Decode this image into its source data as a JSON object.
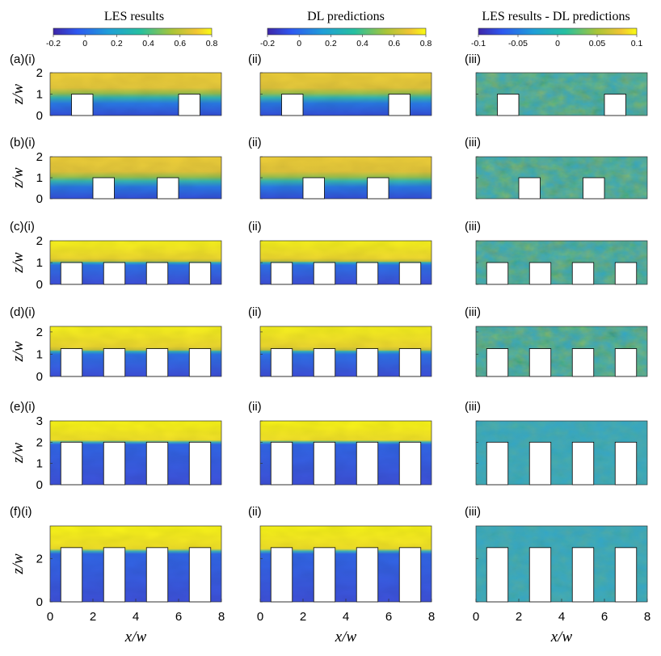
{
  "columns": [
    {
      "title": "LES results",
      "colorbar_ticks": [
        "-0.2",
        "0",
        "0.2",
        "0.4",
        "0.6",
        "0.8"
      ]
    },
    {
      "title": "DL predictions",
      "colorbar_ticks": [
        "-0.2",
        "0",
        "0.2",
        "0.4",
        "0.6",
        "0.8"
      ]
    },
    {
      "title": "LES results - DL predictions",
      "colorbar_ticks": [
        "-0.1",
        "-0.05",
        "0",
        "0.05",
        "0.1"
      ]
    }
  ],
  "rows": [
    {
      "labels": [
        "(a)(i)",
        "(ii)",
        "(iii)"
      ],
      "y_ticks": [
        "0",
        "1",
        "2"
      ]
    },
    {
      "labels": [
        "(b)(i)",
        "(ii)",
        "(iii)"
      ],
      "y_ticks": [
        "0",
        "1",
        "2"
      ]
    },
    {
      "labels": [
        "(c)(i)",
        "(ii)",
        "(iii)"
      ],
      "y_ticks": [
        "0",
        "1",
        "2"
      ]
    },
    {
      "labels": [
        "(d)(i)",
        "(ii)",
        "(iii)"
      ],
      "y_ticks": [
        "0",
        "1",
        "2"
      ]
    },
    {
      "labels": [
        "(e)(i)",
        "(ii)",
        "(iii)"
      ],
      "y_ticks": [
        "0",
        "1",
        "2",
        "3"
      ]
    },
    {
      "labels": [
        "(f)(i)",
        "(ii)",
        "(iii)"
      ],
      "y_ticks": [
        "0",
        "2"
      ]
    }
  ],
  "axes": {
    "ylabel": "z/w",
    "xlabel": "x/w",
    "x_ticks": [
      "0",
      "2",
      "4",
      "6",
      "8"
    ]
  },
  "chart_data": {
    "type": "heatmap",
    "title": "",
    "colormap": "parula",
    "xlabel": "x/w",
    "ylabel": "z/w",
    "xlim": [
      0,
      8
    ],
    "panels": [
      {
        "row": "a",
        "ylim": [
          0,
          2
        ],
        "buildings": [
          {
            "x0": 1,
            "x1": 2,
            "h": 1
          },
          {
            "x0": 6,
            "x1": 7,
            "h": 1
          }
        ]
      },
      {
        "row": "b",
        "ylim": [
          0,
          2
        ],
        "buildings": [
          {
            "x0": 2,
            "x1": 3,
            "h": 1
          },
          {
            "x0": 5,
            "x1": 6,
            "h": 1
          }
        ]
      },
      {
        "row": "c",
        "ylim": [
          0,
          2
        ],
        "buildings": [
          {
            "x0": 0.5,
            "x1": 1.5,
            "h": 1
          },
          {
            "x0": 2.5,
            "x1": 3.5,
            "h": 1
          },
          {
            "x0": 4.5,
            "x1": 5.5,
            "h": 1
          },
          {
            "x0": 6.5,
            "x1": 7.5,
            "h": 1
          }
        ]
      },
      {
        "row": "d",
        "ylim": [
          0,
          2.25
        ],
        "buildings": [
          {
            "x0": 0.5,
            "x1": 1.5,
            "h": 1.25
          },
          {
            "x0": 2.5,
            "x1": 3.5,
            "h": 1.25
          },
          {
            "x0": 4.5,
            "x1": 5.5,
            "h": 1.25
          },
          {
            "x0": 6.5,
            "x1": 7.5,
            "h": 1.25
          }
        ]
      },
      {
        "row": "e",
        "ylim": [
          0,
          3
        ],
        "buildings": [
          {
            "x0": 0.5,
            "x1": 1.5,
            "h": 2
          },
          {
            "x0": 2.5,
            "x1": 3.5,
            "h": 2
          },
          {
            "x0": 4.5,
            "x1": 5.5,
            "h": 2
          },
          {
            "x0": 6.5,
            "x1": 7.5,
            "h": 2
          }
        ]
      },
      {
        "row": "f",
        "ylim": [
          0,
          3.5
        ],
        "buildings": [
          {
            "x0": 0.5,
            "x1": 1.5,
            "h": 2.5
          },
          {
            "x0": 2.5,
            "x1": 3.5,
            "h": 2.5
          },
          {
            "x0": 4.5,
            "x1": 5.5,
            "h": 2.5
          },
          {
            "x0": 6.5,
            "x1": 7.5,
            "h": 2.5
          }
        ]
      }
    ],
    "field_colorbar_range": [
      -0.2,
      0.8
    ],
    "difference_colorbar_range": [
      -0.1,
      0.1
    ]
  }
}
